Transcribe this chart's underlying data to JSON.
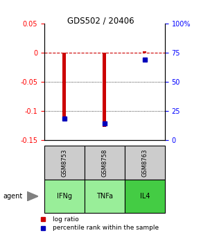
{
  "title": "GDS502 / 20406",
  "samples": [
    "GSM8753",
    "GSM8758",
    "GSM8763"
  ],
  "agents": [
    "IFNg",
    "TNFa",
    "IL4"
  ],
  "log_ratios": [
    -0.113,
    -0.128,
    0.002
  ],
  "percentile_ranks": [
    18,
    14,
    69
  ],
  "ylim_left": [
    -0.15,
    0.05
  ],
  "ylim_right": [
    0,
    100
  ],
  "yticks_left": [
    0.05,
    0.0,
    -0.05,
    -0.1,
    -0.15
  ],
  "yticks_right": [
    100,
    75,
    50,
    25,
    0
  ],
  "bar_color": "#cc0000",
  "dot_color": "#0000bb",
  "agent_colors": {
    "IFNg": "#99ee99",
    "TNFa": "#99ee99",
    "IL4": "#44cc44"
  },
  "sample_bg_color": "#cccccc",
  "legend_bar_label": "log ratio",
  "legend_dot_label": "percentile rank within the sample",
  "bar_width": 0.08
}
